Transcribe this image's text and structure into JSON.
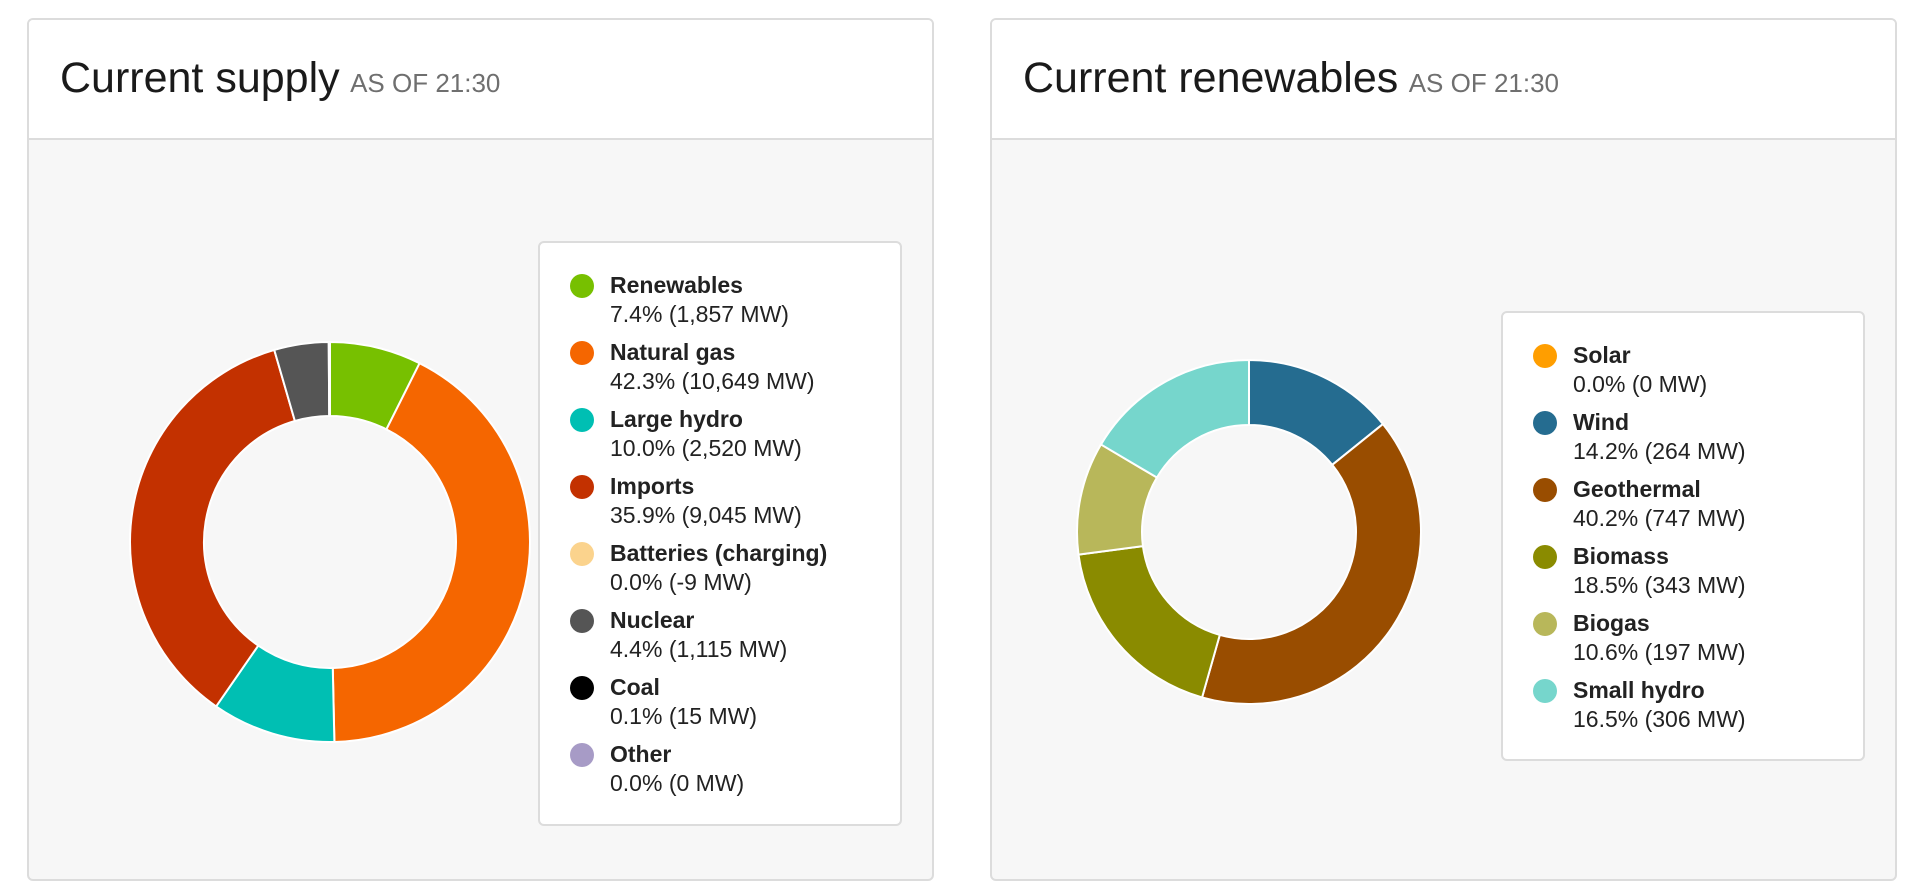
{
  "supply": {
    "title": "Current supply",
    "subtitle": "AS OF 21:30"
  },
  "renewables": {
    "title": "Current renewables",
    "subtitle": "AS OF 21:30"
  },
  "chart_data": [
    {
      "type": "pie",
      "donut": true,
      "title": "Current supply",
      "subtitle": "AS OF 21:30",
      "legend_position": "right",
      "slices": [
        {
          "name": "Renewables",
          "percent": 7.4,
          "mw": 1857,
          "label": "7.4% (1,857 MW)",
          "color": "#77c000"
        },
        {
          "name": "Natural gas",
          "percent": 42.3,
          "mw": 10649,
          "label": "42.3% (10,649 MW)",
          "color": "#f56600"
        },
        {
          "name": "Large hydro",
          "percent": 10.0,
          "mw": 2520,
          "label": "10.0% (2,520 MW)",
          "color": "#00bfb3"
        },
        {
          "name": "Imports",
          "percent": 35.9,
          "mw": 9045,
          "label": "35.9% (9,045 MW)",
          "color": "#c33100"
        },
        {
          "name": "Batteries (charging)",
          "percent": 0.0,
          "mw": -9,
          "label": "0.0% (-9 MW)",
          "color": "#fbd38d"
        },
        {
          "name": "Nuclear",
          "percent": 4.4,
          "mw": 1115,
          "label": "4.4% (1,115 MW)",
          "color": "#555555"
        },
        {
          "name": "Coal",
          "percent": 0.1,
          "mw": 15,
          "label": "0.1% (15 MW)",
          "color": "#000000"
        },
        {
          "name": "Other",
          "percent": 0.0,
          "mw": 0,
          "label": "0.0% (0 MW)",
          "color": "#a79bc6"
        }
      ]
    },
    {
      "type": "pie",
      "donut": true,
      "title": "Current renewables",
      "subtitle": "AS OF 21:30",
      "legend_position": "right",
      "slices": [
        {
          "name": "Solar",
          "percent": 0.0,
          "mw": 0,
          "label": "0.0% (0 MW)",
          "color": "#ff9e00"
        },
        {
          "name": "Wind",
          "percent": 14.2,
          "mw": 264,
          "label": "14.2% (264 MW)",
          "color": "#256c90"
        },
        {
          "name": "Geothermal",
          "percent": 40.2,
          "mw": 747,
          "label": "40.2% (747 MW)",
          "color": "#994d00"
        },
        {
          "name": "Biomass",
          "percent": 18.5,
          "mw": 343,
          "label": "18.5% (343 MW)",
          "color": "#8a8b00"
        },
        {
          "name": "Biogas",
          "percent": 10.6,
          "mw": 197,
          "label": "10.6% (197 MW)",
          "color": "#b8b75a"
        },
        {
          "name": "Small hydro",
          "percent": 16.5,
          "mw": 306,
          "label": "16.5% (306 MW)",
          "color": "#76d6cc"
        }
      ]
    }
  ]
}
